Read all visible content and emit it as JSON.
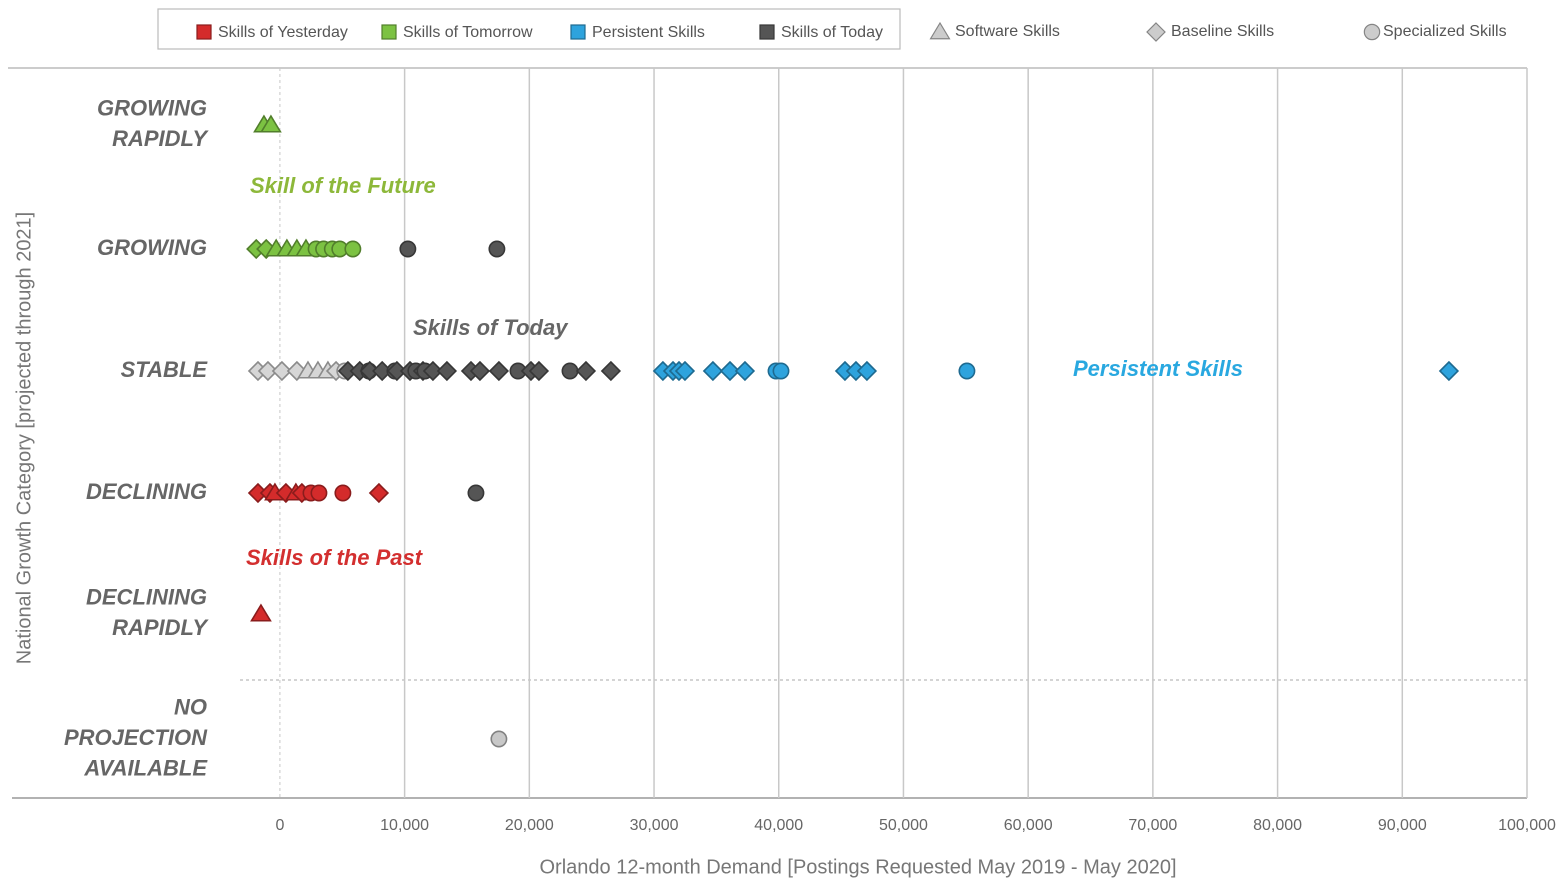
{
  "chart_data": {
    "type": "dotplot",
    "x_label": "Orlando 12-month Demand [Postings Requested May 2019 - May 2020]",
    "y_label": "National Growth Category [projected through 2021]",
    "xlim": [
      -3200,
      100000
    ],
    "xticks": [
      0,
      {
        "value": 10000,
        "label": "10,000"
      },
      {
        "value": 20000,
        "label": "20,000"
      },
      {
        "value": 30000,
        "label": "30,000"
      },
      {
        "value": 40000,
        "label": "40,000"
      },
      {
        "value": 50000,
        "label": "50,000"
      },
      {
        "value": 60000,
        "label": "60,000"
      },
      {
        "value": 70000,
        "label": "70,000"
      },
      {
        "value": 80000,
        "label": "80,000"
      },
      {
        "value": 90000,
        "label": "90,000"
      },
      {
        "value": 100000,
        "label": "100,000"
      }
    ],
    "grid": true,
    "legend": {
      "colors": [
        {
          "name": "Skills of Yesterday",
          "color": "#d42b2b"
        },
        {
          "name": "Skills of Tomorrow",
          "color": "#7cc242"
        },
        {
          "name": "Persistent Skills",
          "color": "#2ea3dd"
        },
        {
          "name": "Skills of Today",
          "color": "#555555"
        }
      ],
      "markers": [
        {
          "name": "Software Skills",
          "shape": "triangle"
        },
        {
          "name": "Baseline Skills",
          "shape": "diamond"
        },
        {
          "name": "Specialized Skills",
          "shape": "circle"
        }
      ]
    },
    "annotations": [
      {
        "text": "Skill of the Future",
        "color": "#8db83a"
      },
      {
        "text": "Skills of Today",
        "color": "#666666"
      },
      {
        "text": "Persistent Skills",
        "color": "#29a8e0"
      },
      {
        "text": "Skills of the Past",
        "color": "#d32f2f"
      }
    ],
    "rows": [
      {
        "label": [
          "GROWING",
          "RAPIDLY"
        ],
        "points": [
          {
            "x": -1280,
            "color": "#7cc242",
            "marker": "triangle"
          },
          {
            "x": -720,
            "color": "#7cc242",
            "marker": "triangle"
          }
        ]
      },
      {
        "label": [
          "GROWING"
        ],
        "points": [
          {
            "x": -1900,
            "color": "#7cc242",
            "marker": "diamond"
          },
          {
            "x": -1100,
            "color": "#7cc242",
            "marker": "diamond"
          },
          {
            "x": -300,
            "color": "#7cc242",
            "marker": "triangle"
          },
          {
            "x": 560,
            "color": "#7cc242",
            "marker": "triangle"
          },
          {
            "x": 1360,
            "color": "#7cc242",
            "marker": "triangle"
          },
          {
            "x": 2090,
            "color": "#7cc242",
            "marker": "triangle"
          },
          {
            "x": 2900,
            "color": "#7cc242",
            "marker": "circle"
          },
          {
            "x": 3500,
            "color": "#7cc242",
            "marker": "circle"
          },
          {
            "x": 4200,
            "color": "#7cc242",
            "marker": "circle"
          },
          {
            "x": 4800,
            "color": "#7cc242",
            "marker": "circle"
          },
          {
            "x": 5850,
            "color": "#7cc242",
            "marker": "circle"
          },
          {
            "x": 10260,
            "color": "#555555",
            "marker": "circle"
          },
          {
            "x": 17400,
            "color": "#555555",
            "marker": "circle"
          }
        ]
      },
      {
        "label": [
          "STABLE"
        ],
        "points": [
          {
            "x": -1760,
            "color": "#d6d6d6",
            "marker": "diamond"
          },
          {
            "x": -960,
            "color": "#d6d6d6",
            "marker": "diamond"
          },
          {
            "x": 160,
            "color": "#d6d6d6",
            "marker": "diamond"
          },
          {
            "x": 1360,
            "color": "#d6d6d6",
            "marker": "diamond"
          },
          {
            "x": 2250,
            "color": "#d6d6d6",
            "marker": "triangle"
          },
          {
            "x": 3050,
            "color": "#d6d6d6",
            "marker": "triangle"
          },
          {
            "x": 3850,
            "color": "#d6d6d6",
            "marker": "triangle"
          },
          {
            "x": 4500,
            "color": "#d6d6d6",
            "marker": "diamond"
          },
          {
            "x": 5200,
            "color": "#d6d6d6",
            "marker": "circle"
          },
          {
            "x": 5450,
            "color": "#555555",
            "marker": "diamond"
          },
          {
            "x": 6400,
            "color": "#555555",
            "marker": "diamond"
          },
          {
            "x": 7140,
            "color": "#555555",
            "marker": "circle"
          },
          {
            "x": 7200,
            "color": "#555555",
            "marker": "diamond"
          },
          {
            "x": 8200,
            "color": "#555555",
            "marker": "diamond"
          },
          {
            "x": 9220,
            "color": "#555555",
            "marker": "circle"
          },
          {
            "x": 9380,
            "color": "#555555",
            "marker": "diamond"
          },
          {
            "x": 10430,
            "color": "#555555",
            "marker": "diamond"
          },
          {
            "x": 10900,
            "color": "#555555",
            "marker": "circle"
          },
          {
            "x": 11470,
            "color": "#555555",
            "marker": "diamond"
          },
          {
            "x": 11630,
            "color": "#555555",
            "marker": "circle"
          },
          {
            "x": 12270,
            "color": "#555555",
            "marker": "diamond"
          },
          {
            "x": 13390,
            "color": "#555555",
            "marker": "diamond"
          },
          {
            "x": 15320,
            "color": "#555555",
            "marker": "diamond"
          },
          {
            "x": 16040,
            "color": "#555555",
            "marker": "diamond"
          },
          {
            "x": 17560,
            "color": "#555555",
            "marker": "diamond"
          },
          {
            "x": 19090,
            "color": "#555555",
            "marker": "circle"
          },
          {
            "x": 20130,
            "color": "#555555",
            "marker": "diamond"
          },
          {
            "x": 20770,
            "color": "#555555",
            "marker": "diamond"
          },
          {
            "x": 23260,
            "color": "#555555",
            "marker": "circle"
          },
          {
            "x": 24540,
            "color": "#555555",
            "marker": "diamond"
          },
          {
            "x": 26540,
            "color": "#555555",
            "marker": "diamond"
          },
          {
            "x": 30710,
            "color": "#2ea3dd",
            "marker": "diamond"
          },
          {
            "x": 31520,
            "color": "#2ea3dd",
            "marker": "diamond"
          },
          {
            "x": 32000,
            "color": "#2ea3dd",
            "marker": "diamond"
          },
          {
            "x": 32480,
            "color": "#2ea3dd",
            "marker": "diamond"
          },
          {
            "x": 34720,
            "color": "#2ea3dd",
            "marker": "diamond"
          },
          {
            "x": 36090,
            "color": "#2ea3dd",
            "marker": "diamond"
          },
          {
            "x": 37290,
            "color": "#2ea3dd",
            "marker": "diamond"
          },
          {
            "x": 39780,
            "color": "#2ea3dd",
            "marker": "circle"
          },
          {
            "x": 40180,
            "color": "#2ea3dd",
            "marker": "circle"
          },
          {
            "x": 45310,
            "color": "#2ea3dd",
            "marker": "diamond"
          },
          {
            "x": 46190,
            "color": "#2ea3dd",
            "marker": "diamond"
          },
          {
            "x": 47070,
            "color": "#2ea3dd",
            "marker": "diamond"
          },
          {
            "x": 55090,
            "color": "#2ea3dd",
            "marker": "circle"
          },
          {
            "x": 93740,
            "color": "#2ea3dd",
            "marker": "diamond"
          }
        ]
      },
      {
        "label": [
          "DECLINING"
        ],
        "points": [
          {
            "x": -1760,
            "color": "#d42b2b",
            "marker": "diamond"
          },
          {
            "x": -800,
            "color": "#d42b2b",
            "marker": "diamond"
          },
          {
            "x": -400,
            "color": "#d42b2b",
            "marker": "triangle"
          },
          {
            "x": 480,
            "color": "#d42b2b",
            "marker": "diamond"
          },
          {
            "x": 1280,
            "color": "#d42b2b",
            "marker": "triangle"
          },
          {
            "x": 1760,
            "color": "#d42b2b",
            "marker": "diamond"
          },
          {
            "x": 2490,
            "color": "#d42b2b",
            "marker": "circle"
          },
          {
            "x": 3130,
            "color": "#d42b2b",
            "marker": "circle"
          },
          {
            "x": 5050,
            "color": "#d42b2b",
            "marker": "circle"
          },
          {
            "x": 7940,
            "color": "#d42b2b",
            "marker": "diamond"
          },
          {
            "x": 15720,
            "color": "#555555",
            "marker": "circle"
          }
        ]
      },
      {
        "label": [
          "DECLINING",
          "RAPIDLY"
        ],
        "points": [
          {
            "x": -1520,
            "color": "#d42b2b",
            "marker": "triangle"
          }
        ]
      },
      {
        "label": [
          "NO",
          "PROJECTION",
          "AVAILABLE"
        ],
        "points": [
          {
            "x": 17560,
            "color": "#c8c8c8",
            "marker": "circle"
          }
        ]
      }
    ]
  }
}
